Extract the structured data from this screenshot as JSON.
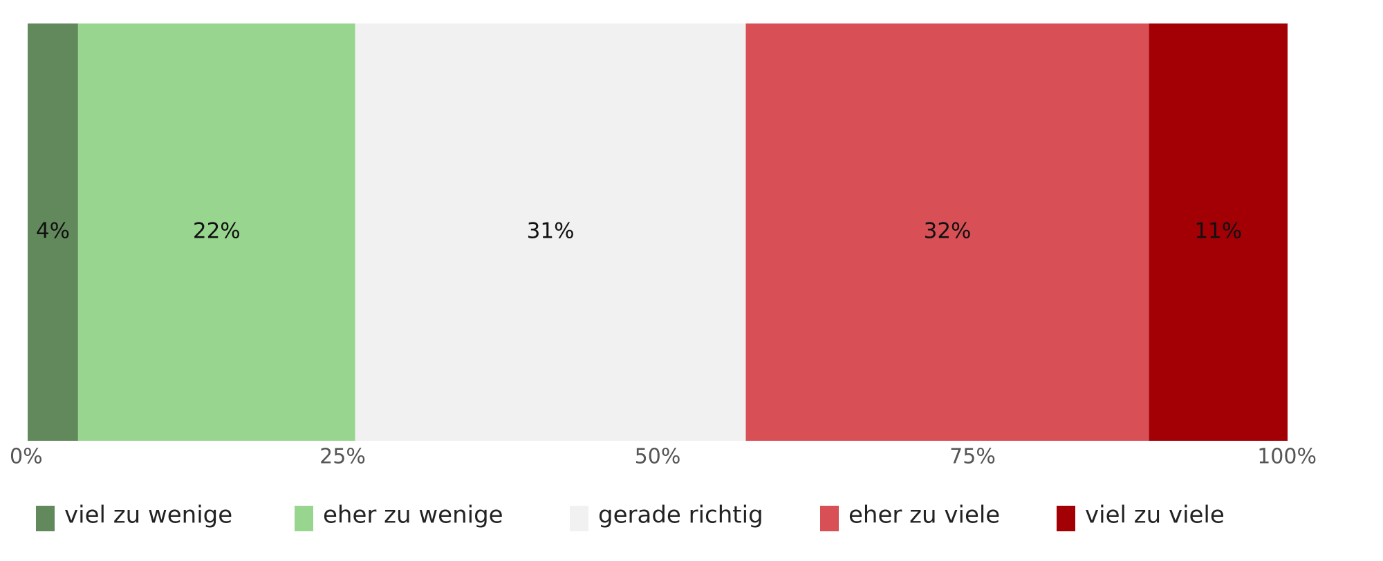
{
  "chart_data": {
    "type": "bar",
    "orientation": "horizontal",
    "stacked": true,
    "categories": [
      null
    ],
    "series": [
      {
        "name": "viel zu wenige",
        "color": "#62895c",
        "values": [
          4
        ],
        "value_labels": [
          "4%"
        ]
      },
      {
        "name": "eher zu wenige",
        "color": "#98d68f",
        "values": [
          22
        ],
        "value_labels": [
          "22%"
        ]
      },
      {
        "name": "gerade richtig",
        "color": "#f1f1f1",
        "values": [
          31
        ],
        "value_labels": [
          "31%"
        ]
      },
      {
        "name": "eher zu viele",
        "color": "#d85055",
        "values": [
          32
        ],
        "value_labels": [
          "32%"
        ]
      },
      {
        "name": "viel zu viele",
        "color": "#a30006",
        "values": [
          11
        ],
        "value_labels": [
          "11%"
        ]
      }
    ],
    "xlim": [
      0,
      100
    ],
    "xticks": [
      {
        "value": 0,
        "label": "0%"
      },
      {
        "value": 25,
        "label": "25%"
      },
      {
        "value": 50,
        "label": "50%"
      },
      {
        "value": 75,
        "label": "75%"
      },
      {
        "value": 100,
        "label": "100%"
      }
    ],
    "grid": false,
    "legend": "bottom"
  }
}
